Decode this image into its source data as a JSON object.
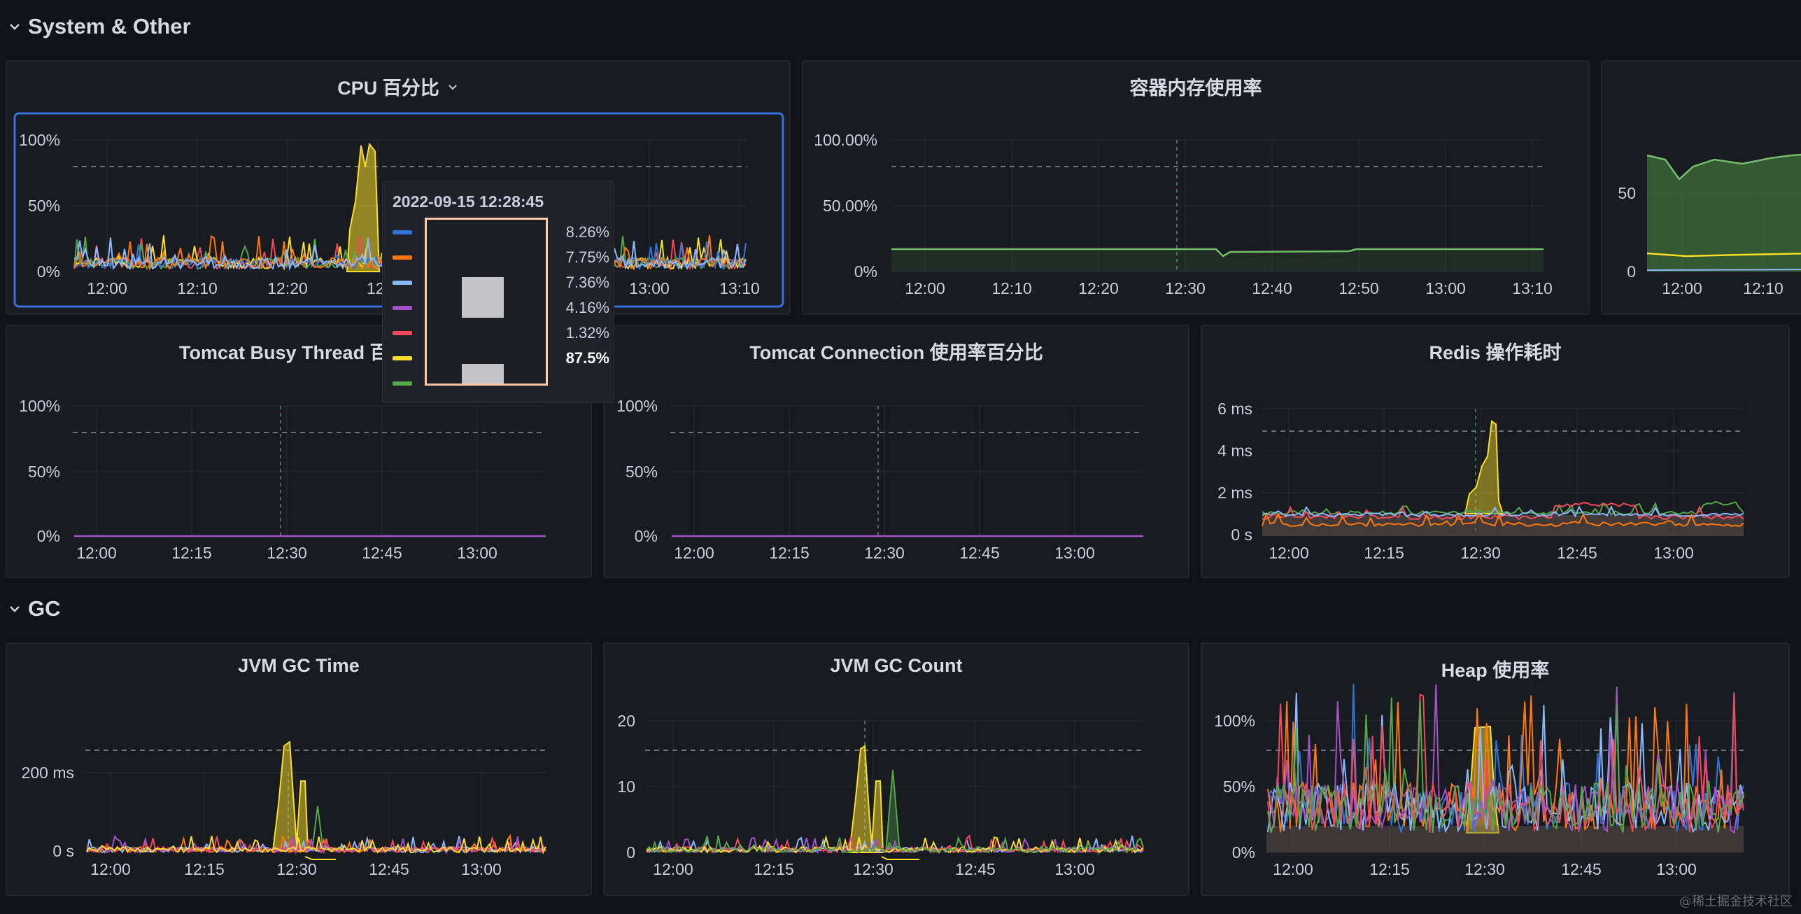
{
  "rows": {
    "system": {
      "title": "System & Other"
    },
    "gc": {
      "title": "GC"
    }
  },
  "panels": {
    "cpu": {
      "title": "CPU 百分比",
      "y_ticks": [
        "100%",
        "50%",
        "0%"
      ],
      "x_ticks": [
        "12:00",
        "12:10",
        "12:20",
        "12:",
        "13:00",
        "13:10"
      ]
    },
    "memory": {
      "title": "容器内存使用率",
      "y_ticks": [
        "100.00%",
        "50.00%",
        "0%"
      ],
      "x_ticks": [
        "12:00",
        "12:10",
        "12:20",
        "12:30",
        "12:40",
        "12:50",
        "13:00",
        "13:10"
      ]
    },
    "partial": {
      "y_ticks": [
        "50",
        "0"
      ],
      "x_ticks": [
        "12:00",
        "12:10"
      ]
    },
    "tomcat_busy": {
      "title": "Tomcat Busy Thread 百",
      "y_ticks": [
        "100%",
        "50%",
        "0%"
      ],
      "x_ticks": [
        "12:00",
        "12:15",
        "12:30",
        "12:45",
        "13:00"
      ]
    },
    "tomcat_conn": {
      "title": "Tomcat Connection 使用率百分比",
      "y_ticks": [
        "100%",
        "50%",
        "0%"
      ],
      "x_ticks": [
        "12:00",
        "12:15",
        "12:30",
        "12:45",
        "13:00"
      ]
    },
    "redis": {
      "title": "Redis 操作耗时",
      "y_ticks": [
        "6 ms",
        "4 ms",
        "2 ms",
        "0 s"
      ],
      "x_ticks": [
        "12:00",
        "12:15",
        "12:30",
        "12:45",
        "13:00"
      ]
    },
    "gc_time": {
      "title": "JVM GC Time",
      "y_ticks": [
        "200 ms",
        "0 s"
      ],
      "x_ticks": [
        "12:00",
        "12:15",
        "12:30",
        "12:45",
        "13:00"
      ]
    },
    "gc_count": {
      "title": "JVM GC Count",
      "y_ticks": [
        "20",
        "10",
        "0"
      ],
      "x_ticks": [
        "12:00",
        "12:15",
        "12:30",
        "12:45",
        "13:00"
      ]
    },
    "heap": {
      "title": "Heap 使用率",
      "y_ticks": [
        "100%",
        "50%",
        "0%"
      ],
      "x_ticks": [
        "12:00",
        "12:15",
        "12:30",
        "12:45",
        "13:00"
      ]
    }
  },
  "tooltip": {
    "time": "2022-09-15 12:28:45",
    "rows": [
      {
        "color": "#3274d9",
        "value": "8.26%",
        "bold": false
      },
      {
        "color": "#ff780a",
        "value": "7.75%",
        "bold": false
      },
      {
        "color": "#8ab8ff",
        "value": "7.36%",
        "bold": false
      },
      {
        "color": "#a352cc",
        "value": "4.16%",
        "bold": false
      },
      {
        "color": "#f2495c",
        "value": "1.32%",
        "bold": false
      },
      {
        "color": "#fade2a",
        "value": "87.5%",
        "bold": true
      },
      {
        "color": "#56a64b",
        "value": "",
        "bold": false
      }
    ]
  },
  "colors": {
    "series": [
      "#3274d9",
      "#ff780a",
      "#8ab8ff",
      "#a352cc",
      "#f2495c",
      "#fade2a",
      "#56a64b"
    ],
    "threshold": "#6e7079",
    "selected_border": "#3871dc"
  },
  "watermark": "@稀土掘金技术社区"
}
